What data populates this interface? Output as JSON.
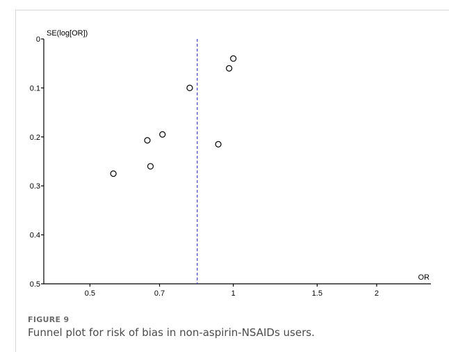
{
  "figure": {
    "label": "FIGURE 9",
    "caption": "Funnel plot for risk of bias in non-aspirin-NSAIDs users."
  },
  "chart_data": {
    "type": "scatter",
    "title": "",
    "xlabel": "OR",
    "ylabel": "SE(log[OR])",
    "x_scale": "log",
    "x_ticks": [
      0.5,
      0.7,
      1,
      1.5,
      2
    ],
    "x_tick_labels": [
      "0.5",
      "0.7",
      "1",
      "1.5",
      "2"
    ],
    "y_ticks": [
      0,
      0.1,
      0.2,
      0.3,
      0.4,
      0.5
    ],
    "y_tick_labels": [
      "0",
      "0.1",
      "0.2",
      "0.3",
      "0.4",
      "0.5"
    ],
    "xlim": [
      0.4,
      2.6
    ],
    "ylim": [
      0,
      0.5
    ],
    "y_inverted": true,
    "pooled_estimate": 0.84,
    "points": [
      {
        "x": 1.0,
        "y": 0.04
      },
      {
        "x": 0.98,
        "y": 0.06
      },
      {
        "x": 0.81,
        "y": 0.1
      },
      {
        "x": 0.71,
        "y": 0.195
      },
      {
        "x": 0.66,
        "y": 0.207
      },
      {
        "x": 0.93,
        "y": 0.215
      },
      {
        "x": 0.67,
        "y": 0.26
      },
      {
        "x": 0.56,
        "y": 0.275
      }
    ],
    "colors": {
      "axis": "#000000",
      "marker": "#000000",
      "reference_line": "#3c3ccc"
    }
  }
}
